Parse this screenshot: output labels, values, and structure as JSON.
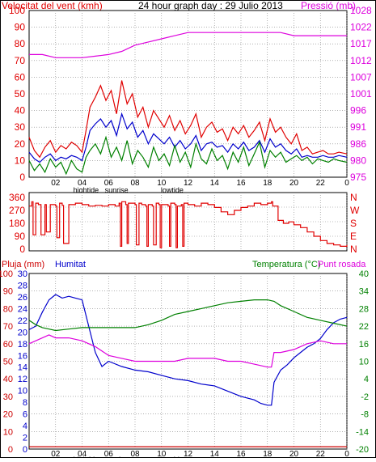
{
  "header": {
    "left_label": "Velocitat del vent (kmh)",
    "title": "24 hour graph day : 29 Julio 2013",
    "right_label": "Pressió (mb)"
  },
  "colors": {
    "red": "#e00000",
    "blue": "#0000cc",
    "green": "#008000",
    "magenta": "#dd00dd",
    "dark_red": "#cc0000",
    "grid": "#808080",
    "frame": "#000000"
  },
  "chart_data": [
    {
      "type": "line",
      "title": "24 hour graph day : 29 Julio 2013",
      "ylabel_left": "Velocitat del vent (kmh)",
      "ylabel_right": "Pressió (mb)",
      "x_ticks": [
        "02",
        "04",
        "06",
        "08",
        "10",
        "12",
        "14",
        "16",
        "18",
        "20",
        "22",
        "00"
      ],
      "x_events": [
        {
          "label": "hightide",
          "x": 4.3
        },
        {
          "label": "sunrise",
          "x": 6.6
        },
        {
          "label": "lowtide",
          "x": 10.8
        }
      ],
      "left_ylim": [
        0,
        100
      ],
      "left_ticks": [
        0,
        10,
        20,
        30,
        40,
        50,
        60,
        70,
        80,
        90,
        100
      ],
      "right_ylim": [
        975,
        1028
      ],
      "right_ticks": [
        975,
        980,
        986,
        991,
        996,
        1001,
        1007,
        1012,
        1017,
        1022,
        1028
      ],
      "series": [
        {
          "color": "#e00000",
          "axis": "left",
          "x": [
            0.0,
            0.4,
            0.8,
            1.2,
            1.6,
            2.0,
            2.4,
            2.8,
            3.2,
            3.6,
            4.0,
            4.3,
            4.6,
            5.0,
            5.4,
            5.8,
            6.2,
            6.6,
            7.0,
            7.4,
            7.8,
            8.2,
            8.6,
            9.0,
            9.4,
            9.8,
            10.2,
            10.6,
            11.0,
            11.4,
            11.8,
            12.2,
            12.6,
            13.0,
            13.4,
            13.8,
            14.2,
            14.6,
            15.0,
            15.4,
            15.8,
            16.2,
            16.6,
            17.0,
            17.4,
            17.8,
            18.2,
            18.6,
            19.0,
            19.4,
            19.8,
            20.2,
            20.6,
            21.0,
            21.4,
            21.8,
            22.2,
            22.6,
            23.0,
            23.4,
            24.0
          ],
          "values": [
            24,
            16,
            12,
            18,
            22,
            15,
            19,
            17,
            21,
            19,
            15,
            28,
            42,
            48,
            55,
            46,
            52,
            38,
            58,
            44,
            50,
            36,
            42,
            30,
            40,
            35,
            30,
            37,
            28,
            34,
            26,
            31,
            38,
            24,
            30,
            33,
            27,
            29,
            22,
            30,
            26,
            31,
            24,
            28,
            33,
            22,
            35,
            27,
            30,
            24,
            20,
            26,
            16,
            18,
            14,
            15,
            16,
            14,
            14,
            15,
            14
          ]
        },
        {
          "color": "#0000cc",
          "axis": "left",
          "x": [
            0.0,
            0.4,
            0.8,
            1.2,
            1.6,
            2.0,
            2.4,
            2.8,
            3.2,
            3.6,
            4.0,
            4.3,
            4.6,
            5.0,
            5.4,
            5.8,
            6.2,
            6.6,
            7.0,
            7.4,
            7.8,
            8.2,
            8.6,
            9.0,
            9.4,
            9.8,
            10.2,
            10.6,
            11.0,
            11.4,
            11.8,
            12.2,
            12.6,
            13.0,
            13.4,
            13.8,
            14.2,
            14.6,
            15.0,
            15.4,
            15.8,
            16.2,
            16.6,
            17.0,
            17.4,
            17.8,
            18.2,
            18.6,
            19.0,
            19.4,
            19.8,
            20.2,
            20.6,
            21.0,
            21.4,
            21.8,
            22.2,
            22.6,
            23.0,
            23.4,
            24.0
          ],
          "values": [
            15,
            11,
            9,
            12,
            14,
            10,
            12,
            11,
            13,
            12,
            10,
            18,
            28,
            32,
            35,
            30,
            34,
            25,
            38,
            29,
            33,
            24,
            28,
            20,
            26,
            23,
            20,
            24,
            18,
            22,
            17,
            20,
            25,
            16,
            20,
            21,
            18,
            19,
            15,
            20,
            17,
            21,
            16,
            18,
            22,
            15,
            23,
            18,
            20,
            16,
            14,
            17,
            12,
            13,
            12,
            12,
            13,
            12,
            12,
            13,
            12
          ]
        },
        {
          "color": "#008000",
          "axis": "left",
          "x": [
            0.0,
            0.4,
            0.8,
            1.2,
            1.6,
            2.0,
            2.4,
            2.8,
            3.2,
            3.6,
            4.0,
            4.3,
            4.6,
            5.0,
            5.4,
            5.8,
            6.2,
            6.6,
            7.0,
            7.4,
            7.8,
            8.2,
            8.6,
            9.0,
            9.4,
            9.8,
            10.2,
            10.6,
            11.0,
            11.4,
            11.8,
            12.2,
            12.6,
            13.0,
            13.4,
            13.8,
            14.2,
            14.6,
            15.0,
            15.4,
            15.8,
            16.2,
            16.6,
            17.0,
            17.4,
            17.8,
            18.2,
            18.6,
            19.0,
            19.4,
            19.8,
            20.2,
            20.6,
            21.0,
            21.4,
            21.8,
            22.2,
            22.6,
            23.0,
            23.4,
            24.0
          ],
          "values": [
            10,
            4,
            8,
            3,
            11,
            6,
            9,
            2,
            10,
            5,
            3,
            12,
            16,
            20,
            14,
            24,
            12,
            18,
            10,
            22,
            8,
            16,
            12,
            6,
            18,
            10,
            14,
            7,
            19,
            9,
            15,
            6,
            20,
            11,
            8,
            17,
            10,
            13,
            5,
            15,
            9,
            18,
            7,
            14,
            21,
            6,
            16,
            12,
            15,
            9,
            11,
            13,
            10,
            12,
            8,
            11,
            10,
            9,
            11,
            10,
            9
          ]
        },
        {
          "color": "#dd00dd",
          "axis": "right",
          "x": [
            0.0,
            1.0,
            2.0,
            3.0,
            4.0,
            5.0,
            6.0,
            7.0,
            8.0,
            9.0,
            10.0,
            11.0,
            12.0,
            13.0,
            14.0,
            15.0,
            16.0,
            17.0,
            18.0,
            19.0,
            20.0,
            21.0,
            22.0,
            23.0,
            24.0
          ],
          "values": [
            1014,
            1014,
            1013,
            1013,
            1013,
            1013.5,
            1014,
            1015,
            1017,
            1018,
            1019,
            1020,
            1021,
            1021,
            1021,
            1021,
            1021,
            1021,
            1021,
            1021,
            1020,
            1020,
            1020,
            1020,
            1020
          ]
        }
      ]
    },
    {
      "type": "line",
      "ylabel_left": "",
      "left_ylim": [
        0,
        360
      ],
      "left_ticks": [
        0,
        90,
        180,
        270,
        360
      ],
      "right_labels": [
        "N",
        "W",
        "S",
        "E",
        "N"
      ],
      "series": [
        {
          "color": "#e00000",
          "axis": "left",
          "x": [
            0.0,
            0.2,
            0.3,
            0.5,
            0.7,
            0.9,
            1.2,
            1.3,
            1.6,
            2.0,
            2.1,
            2.3,
            2.5,
            2.6,
            3.0,
            3.5,
            4.0,
            4.5,
            5.0,
            5.5,
            6.0,
            6.5,
            6.8,
            6.9,
            7.0,
            7.3,
            7.4,
            7.5,
            8.0,
            8.1,
            8.3,
            8.5,
            8.8,
            8.9,
            9.0,
            9.3,
            9.4,
            9.6,
            9.8,
            9.9,
            10.0,
            10.5,
            10.6,
            10.7,
            11.0,
            11.1,
            11.2,
            11.5,
            11.6,
            11.7,
            12.0,
            12.5,
            13.0,
            13.5,
            14.0,
            14.5,
            15.0,
            15.5,
            16.0,
            16.5,
            17.0,
            17.5,
            18.0,
            18.3,
            18.4,
            18.8,
            19.2,
            19.6,
            20.0,
            20.5,
            21.0,
            21.5,
            22.0,
            22.5,
            23.0,
            23.5,
            24.0
          ],
          "values": [
            300,
            330,
            100,
            320,
            310,
            100,
            310,
            120,
            310,
            300,
            80,
            320,
            305,
            40,
            310,
            320,
            310,
            300,
            305,
            300,
            310,
            300,
            320,
            20,
            330,
            310,
            40,
            320,
            310,
            30,
            320,
            310,
            300,
            20,
            310,
            300,
            30,
            320,
            310,
            10,
            310,
            300,
            20,
            320,
            310,
            10,
            300,
            310,
            20,
            320,
            310,
            300,
            320,
            310,
            290,
            260,
            240,
            270,
            290,
            300,
            320,
            310,
            320,
            330,
            300,
            200,
            180,
            190,
            170,
            150,
            120,
            90,
            60,
            40,
            30,
            20,
            30
          ]
        }
      ]
    },
    {
      "type": "line",
      "ylabel_left": "Pluja (mm)",
      "ylabel_left2": "Humitat",
      "ylabel_right": "Temperatura (°C)",
      "ylabel_right2": "Punt rosada",
      "x_ticks": [
        "02",
        "04",
        "06",
        "08",
        "10",
        "12",
        "14",
        "16",
        "18",
        "20",
        "22",
        "00"
      ],
      "x_events": [
        {
          "label": "hightide",
          "x": 4.3
        },
        {
          "label": "sunrise",
          "x": 6.6
        },
        {
          "label": "lowtide",
          "x": 10.8
        }
      ],
      "rain_ylim": [
        0,
        30
      ],
      "rain_ticks": [
        0,
        2,
        4,
        6,
        8,
        10,
        12,
        14,
        16,
        18,
        20,
        22,
        24,
        26,
        28,
        30
      ],
      "humidity_ylim": [
        0,
        100
      ],
      "humidity_ticks": [
        0,
        10,
        20,
        30,
        40,
        50,
        60,
        70,
        80,
        90,
        100
      ],
      "temp_ylim": [
        -20,
        40
      ],
      "temp_ticks": [
        -20,
        -14,
        -8,
        -2,
        4,
        10,
        16,
        22,
        28,
        34,
        40
      ],
      "series": [
        {
          "color": "#0000cc",
          "axis": "humidity",
          "x": [
            0.0,
            0.5,
            1.0,
            1.5,
            2.0,
            2.5,
            3.0,
            3.5,
            4.0,
            4.5,
            5.0,
            5.5,
            6.0,
            7.0,
            8.0,
            9.0,
            10.0,
            11.0,
            12.0,
            13.0,
            14.0,
            15.0,
            16.0,
            17.0,
            17.5,
            18.0,
            18.3,
            18.5,
            19.0,
            19.5,
            20.0,
            20.5,
            21.0,
            21.5,
            22.0,
            22.5,
            23.0,
            23.5,
            24.0
          ],
          "values": [
            68,
            70,
            78,
            85,
            88,
            86,
            87,
            86,
            85,
            70,
            55,
            47,
            50,
            47,
            45,
            44,
            42,
            40,
            39,
            37,
            36,
            33,
            30,
            28,
            26,
            25,
            25,
            38,
            45,
            48,
            52,
            55,
            58,
            60,
            63,
            68,
            72,
            74,
            75
          ]
        },
        {
          "color": "#008000",
          "axis": "temp",
          "x": [
            0.0,
            0.5,
            1.0,
            1.5,
            2.0,
            3.0,
            4.0,
            5.0,
            6.0,
            7.0,
            8.0,
            9.0,
            10.0,
            11.0,
            12.0,
            13.0,
            14.0,
            15.0,
            16.0,
            17.0,
            18.0,
            18.5,
            19.0,
            20.0,
            21.0,
            22.0,
            23.0,
            24.0
          ],
          "values": [
            24,
            22.5,
            21.5,
            21,
            20.5,
            21,
            21.5,
            21.5,
            21.5,
            21.5,
            21.5,
            22.5,
            24,
            26,
            27,
            28,
            29,
            30,
            30.5,
            31,
            31,
            30.5,
            29,
            27,
            25,
            24,
            23,
            22
          ]
        },
        {
          "color": "#dd00dd",
          "axis": "temp",
          "x": [
            0.0,
            0.5,
            1.0,
            1.5,
            2.0,
            3.0,
            4.0,
            5.0,
            6.0,
            7.0,
            8.0,
            9.0,
            10.0,
            11.0,
            12.0,
            13.0,
            14.0,
            15.0,
            16.0,
            17.0,
            18.0,
            18.3,
            18.5,
            19.0,
            20.0,
            21.0,
            22.0,
            23.0,
            24.0
          ],
          "values": [
            16,
            17,
            18,
            19,
            18,
            18,
            17,
            15,
            12,
            11,
            10,
            10,
            10,
            10,
            11,
            11,
            11,
            10,
            10,
            9,
            8,
            8,
            13,
            13,
            14,
            16,
            17,
            16,
            16
          ]
        },
        {
          "color": "#cc0000",
          "axis": "rain",
          "x": [
            0.0,
            24.0
          ],
          "values": [
            0.4,
            0.4
          ]
        }
      ]
    }
  ],
  "bottom_labels": {
    "left_label": "Pluja (mm)",
    "left2_label": "Humitat",
    "right_label": "Temperatura (°C)",
    "right2_label": "Punt rosada"
  }
}
